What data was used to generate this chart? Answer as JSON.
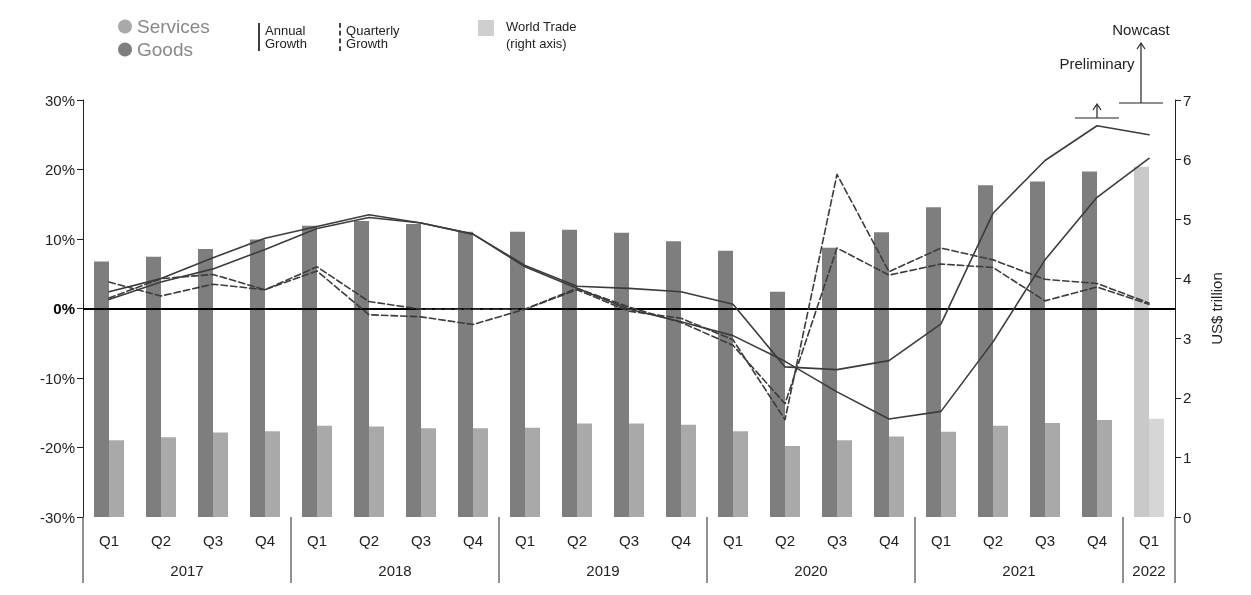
{
  "chart_data": {
    "type": "bar",
    "y2label": "US$ trillion",
    "categories": [
      "Q1",
      "Q2",
      "Q3",
      "Q4",
      "Q1",
      "Q2",
      "Q3",
      "Q4",
      "Q1",
      "Q2",
      "Q3",
      "Q4",
      "Q1",
      "Q2",
      "Q3",
      "Q4",
      "Q1",
      "Q2",
      "Q3",
      "Q4",
      "Q1"
    ],
    "series": [
      {
        "name": "Goods",
        "axis": "y2",
        "color": "#7e7e7e",
        "colors": [
          "#7e7e7e",
          "#7e7e7e",
          "#7e7e7e",
          "#7e7e7e",
          "#7e7e7e",
          "#7e7e7e",
          "#7e7e7e",
          "#7e7e7e",
          "#7e7e7e",
          "#7e7e7e",
          "#7e7e7e",
          "#7e7e7e",
          "#7e7e7e",
          "#7e7e7e",
          "#7e7e7e",
          "#7e7e7e",
          "#7e7e7e",
          "#7e7e7e",
          "#7e7e7e",
          "#7e7e7e",
          "#c9c9c9"
        ],
        "values": [
          4.29,
          4.37,
          4.5,
          4.66,
          4.89,
          4.97,
          4.92,
          4.79,
          4.79,
          4.82,
          4.77,
          4.63,
          4.47,
          3.78,
          4.52,
          4.78,
          5.2,
          5.57,
          5.63,
          5.8,
          5.88
        ]
      },
      {
        "name": "Services",
        "axis": "y2",
        "color": "#a9a9a9",
        "colors": [
          "#a9a9a9",
          "#a9a9a9",
          "#a9a9a9",
          "#a9a9a9",
          "#a9a9a9",
          "#a9a9a9",
          "#a9a9a9",
          "#a9a9a9",
          "#a9a9a9",
          "#a9a9a9",
          "#a9a9a9",
          "#a9a9a9",
          "#a9a9a9",
          "#a9a9a9",
          "#a9a9a9",
          "#a9a9a9",
          "#a9a9a9",
          "#a9a9a9",
          "#a9a9a9",
          "#a9a9a9",
          "#d6d6d6"
        ],
        "values": [
          1.29,
          1.34,
          1.42,
          1.44,
          1.53,
          1.52,
          1.49,
          1.49,
          1.5,
          1.57,
          1.57,
          1.55,
          1.44,
          1.19,
          1.29,
          1.35,
          1.43,
          1.53,
          1.58,
          1.63,
          1.65
        ]
      },
      {
        "name": "Annual Growth",
        "type": "line",
        "line_style": "solid",
        "color": "#3c3c3c",
        "values": [
          2.4,
          4.3,
          7.3,
          10.1,
          11.8,
          13.5,
          12.3,
          10.7,
          6.2,
          3.2,
          2.9,
          2.4,
          0.6,
          -8.4,
          -8.8,
          -7.5,
          -2.2,
          13.7,
          21.3,
          26.3,
          25.0
        ]
      },
      {
        "type": "line",
        "line_style": "solid",
        "color": "#3c3c3c",
        "values": [
          1.3,
          3.8,
          5.7,
          8.5,
          11.5,
          13.1,
          12.3,
          10.7,
          6.0,
          2.9,
          -0.1,
          -1.9,
          -3.9,
          -7.6,
          -12.0,
          -15.9,
          -14.8,
          -4.8,
          7.0,
          16.0,
          21.6
        ]
      },
      {
        "name": "Quarterly Growth",
        "type": "line",
        "line_style": "dashed",
        "color": "#3c3c3c",
        "values": [
          3.8,
          1.8,
          3.5,
          2.7,
          6.0,
          1.0,
          -0.1,
          -0.1,
          -0.1,
          2.7,
          -0.4,
          -1.4,
          -4.5,
          -16.0,
          19.3,
          5.3,
          8.7,
          7.0,
          4.2,
          3.6,
          0.8
        ]
      },
      {
        "type": "line",
        "line_style": "dashed",
        "color": "#3c3c3c",
        "values": [
          1.5,
          4.3,
          4.9,
          2.7,
          5.4,
          -0.9,
          -1.2,
          -2.3,
          -0.1,
          2.9,
          0.2,
          -2.0,
          -5.3,
          -13.7,
          8.7,
          4.8,
          6.4,
          5.9,
          1.1,
          3.1,
          0.6
        ]
      }
    ],
    "ylim": [
      -30,
      30
    ],
    "yticks": [
      {
        "value": -30,
        "label": "-30%"
      },
      {
        "value": -20,
        "label": "-20%"
      },
      {
        "value": -10,
        "label": "-10%"
      },
      {
        "value": 0,
        "label": "0%"
      },
      {
        "value": 10,
        "label": "10%"
      },
      {
        "value": 20,
        "label": "20%"
      },
      {
        "value": 30,
        "label": "30%"
      }
    ],
    "y2lim": [
      0,
      7
    ],
    "y2ticks": [
      0,
      1,
      2,
      3,
      4,
      5,
      6,
      7
    ],
    "ref_lines": [
      {
        "axis": "y",
        "value": 0,
        "color": "#000000"
      }
    ],
    "marker": "none",
    "grid": false,
    "legend": "top left",
    "annotations": [
      "2017",
      "2018",
      "2019",
      "2020",
      "2021",
      "2022",
      "Preliminary",
      "Nowcast",
      "World Trade (right axis)"
    ]
  }
}
